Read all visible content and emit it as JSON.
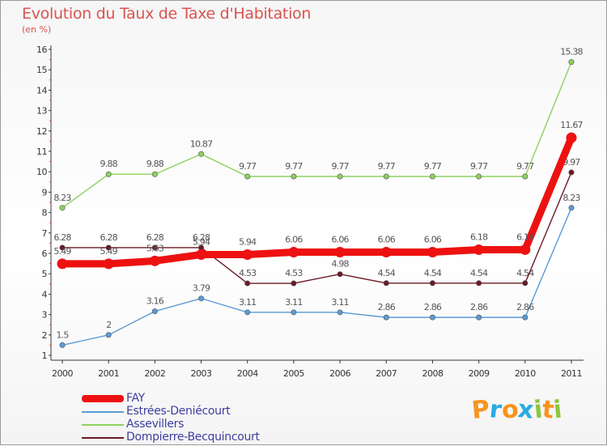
{
  "chart_data": {
    "type": "line",
    "title": "Evolution du Taux de Taxe d'Habitation",
    "unit_label": "(en %)",
    "x": [
      "2000",
      "2001",
      "2002",
      "2003",
      "2004",
      "2005",
      "2006",
      "2007",
      "2008",
      "2009",
      "2010",
      "2011"
    ],
    "ylim": [
      1,
      16
    ],
    "yticks": [
      1,
      2,
      3,
      4,
      5,
      6,
      7,
      8,
      9,
      10,
      11,
      12,
      13,
      14,
      15,
      16
    ],
    "grid": false,
    "legend_position": "bottom-left",
    "series": [
      {
        "name": "Dompierre-Becquincourt",
        "color": "#6b1a25",
        "values": [
          6.28,
          6.28,
          6.28,
          6.28,
          4.53,
          4.53,
          4.98,
          4.54,
          4.54,
          4.54,
          4.54,
          9.97
        ],
        "labels": [
          "6.28",
          "6.28",
          "6.28",
          "6.28",
          "4.53",
          "4.53",
          "4.98",
          "4.54",
          "4.54",
          "4.54",
          "4.54",
          "9.97"
        ]
      },
      {
        "name": "Assevillers",
        "color": "#8ed060",
        "values": [
          8.23,
          9.88,
          9.88,
          10.87,
          9.77,
          9.77,
          9.77,
          9.77,
          9.77,
          9.77,
          9.77,
          15.38
        ],
        "labels": [
          "8.23",
          "9.88",
          "9.88",
          "10.87",
          "9.77",
          "9.77",
          "9.77",
          "9.77",
          "9.77",
          "9.77",
          "9.77",
          "15.38"
        ]
      },
      {
        "name": "Estrées-Deniécourt",
        "color": "#5b9bd5",
        "values": [
          1.5,
          2,
          3.16,
          3.79,
          3.11,
          3.11,
          3.11,
          2.86,
          2.86,
          2.86,
          2.86,
          8.23
        ],
        "labels": [
          "1.5",
          "2",
          "3.16",
          "3.79",
          "3.11",
          "3.11",
          "3.11",
          "2.86",
          "2.86",
          "2.86",
          "2.86",
          "8.23"
        ]
      },
      {
        "name": "FAY",
        "color": "#ee1111",
        "values": [
          5.49,
          5.49,
          5.63,
          5.94,
          5.94,
          6.06,
          6.06,
          6.06,
          6.06,
          6.18,
          6.18,
          11.67
        ],
        "labels": [
          "5.49",
          "5.49",
          "5.63",
          "5.94",
          "5.94",
          "6.06",
          "6.06",
          "6.06",
          "6.06",
          "6.18",
          "6.18",
          "11.67"
        ]
      }
    ],
    "legend": [
      {
        "name": "FAY",
        "color": "#ee1111"
      },
      {
        "name": "Estrées-Deniécourt",
        "color": "#5b9bd5"
      },
      {
        "name": "Assevillers",
        "color": "#8ed060"
      },
      {
        "name": "Dompierre-Becquincourt",
        "color": "#6b1a25"
      }
    ]
  },
  "logo": {
    "letters": [
      "P",
      "r",
      "o",
      "x",
      "i",
      "t",
      "i"
    ],
    "colors": [
      "#f7941d",
      "#29abe2",
      "#f7941d",
      "#29abe2",
      "#8dc63f",
      "#f7941d",
      "#8dc63f"
    ]
  }
}
